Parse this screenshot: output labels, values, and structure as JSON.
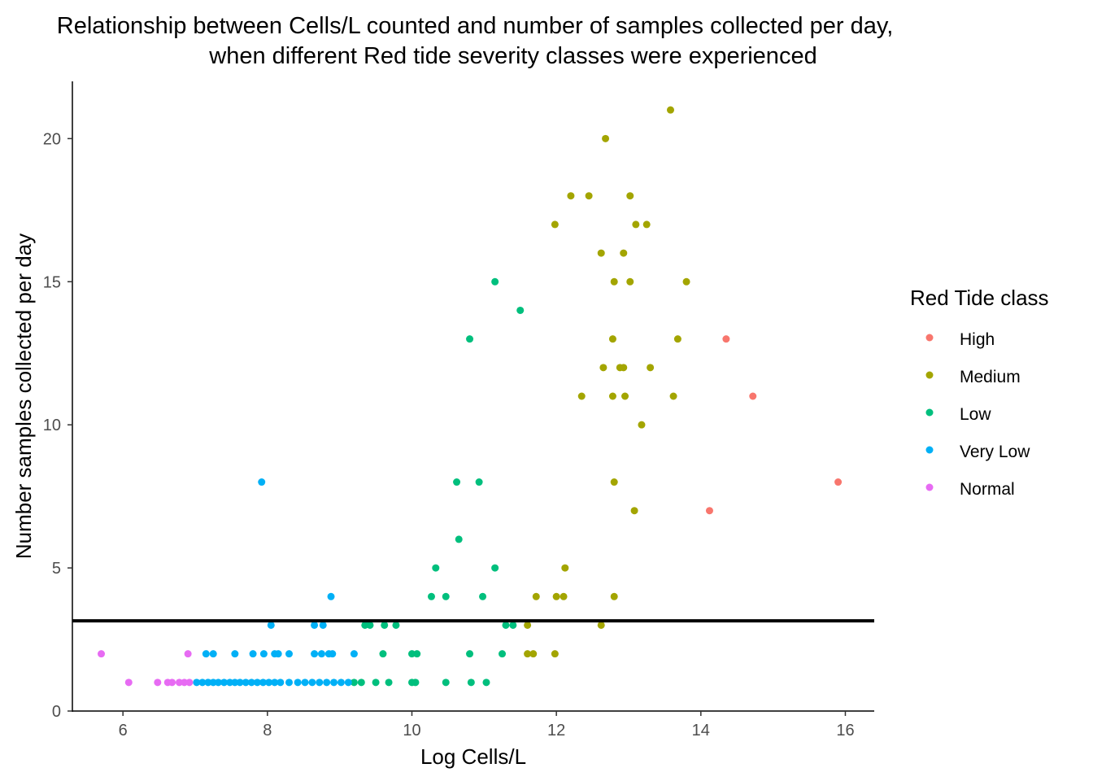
{
  "chart_data": {
    "type": "scatter",
    "title": "Relationship between Cells/L counted and number of samples collected per day,",
    "subtitle": "when different Red tide severity classes were experienced",
    "xlabel": "Log Cells/L",
    "ylabel": "Number samples collected per day",
    "xlim": [
      5.3,
      16.4
    ],
    "ylim": [
      0,
      22
    ],
    "x_ticks": [
      6,
      8,
      10,
      12,
      14,
      16
    ],
    "y_ticks": [
      0,
      5,
      10,
      15,
      20
    ],
    "grid": false,
    "legend": {
      "title": "Red Tide class",
      "position": "right"
    },
    "hline": {
      "y": 3.15,
      "color": "#000000"
    },
    "series": [
      {
        "name": "High",
        "color": "#F8766D",
        "points": [
          [
            14.35,
            13
          ],
          [
            14.72,
            11
          ],
          [
            14.12,
            7
          ],
          [
            15.9,
            8
          ]
        ]
      },
      {
        "name": "Medium",
        "color": "#A3A500",
        "points": [
          [
            13.58,
            21
          ],
          [
            12.68,
            20
          ],
          [
            12.2,
            18
          ],
          [
            12.45,
            18
          ],
          [
            13.02,
            18
          ],
          [
            11.98,
            17
          ],
          [
            13.1,
            17
          ],
          [
            13.25,
            17
          ],
          [
            12.62,
            16
          ],
          [
            12.93,
            16
          ],
          [
            12.8,
            15
          ],
          [
            13.02,
            15
          ],
          [
            13.8,
            15
          ],
          [
            12.78,
            13
          ],
          [
            13.68,
            13
          ],
          [
            12.65,
            12
          ],
          [
            12.88,
            12
          ],
          [
            12.93,
            12
          ],
          [
            13.3,
            12
          ],
          [
            12.35,
            11
          ],
          [
            12.78,
            11
          ],
          [
            12.95,
            11
          ],
          [
            13.62,
            11
          ],
          [
            13.18,
            10
          ],
          [
            12.8,
            8
          ],
          [
            13.08,
            7
          ],
          [
            12.12,
            5
          ],
          [
            11.72,
            4
          ],
          [
            12.0,
            4
          ],
          [
            12.1,
            4
          ],
          [
            12.8,
            4
          ],
          [
            11.6,
            3
          ],
          [
            12.62,
            3
          ],
          [
            11.6,
            2
          ],
          [
            11.68,
            2
          ],
          [
            11.98,
            2
          ]
        ]
      },
      {
        "name": "Low",
        "color": "#00BF7D",
        "points": [
          [
            11.15,
            15
          ],
          [
            11.5,
            14
          ],
          [
            10.8,
            13
          ],
          [
            10.62,
            8
          ],
          [
            10.93,
            8
          ],
          [
            10.65,
            6
          ],
          [
            10.33,
            5
          ],
          [
            11.15,
            5
          ],
          [
            10.27,
            4
          ],
          [
            10.47,
            4
          ],
          [
            10.98,
            4
          ],
          [
            9.35,
            3
          ],
          [
            9.42,
            3
          ],
          [
            9.62,
            3
          ],
          [
            9.78,
            3
          ],
          [
            11.3,
            3
          ],
          [
            11.4,
            3
          ],
          [
            9.6,
            2
          ],
          [
            10.0,
            2
          ],
          [
            10.07,
            2
          ],
          [
            10.8,
            2
          ],
          [
            11.25,
            2
          ],
          [
            9.2,
            1
          ],
          [
            9.3,
            1
          ],
          [
            9.5,
            1
          ],
          [
            9.68,
            1
          ],
          [
            10.0,
            1
          ],
          [
            10.05,
            1
          ],
          [
            10.47,
            1
          ],
          [
            10.82,
            1
          ],
          [
            11.03,
            1
          ]
        ]
      },
      {
        "name": "Very Low",
        "color": "#00B0F6",
        "points": [
          [
            7.92,
            8
          ],
          [
            8.88,
            4
          ],
          [
            8.05,
            3
          ],
          [
            8.65,
            3
          ],
          [
            8.77,
            3
          ],
          [
            7.15,
            2
          ],
          [
            7.25,
            2
          ],
          [
            7.55,
            2
          ],
          [
            7.8,
            2
          ],
          [
            7.95,
            2
          ],
          [
            8.1,
            2
          ],
          [
            8.15,
            2
          ],
          [
            8.3,
            2
          ],
          [
            8.65,
            2
          ],
          [
            8.75,
            2
          ],
          [
            8.85,
            2
          ],
          [
            8.9,
            2
          ],
          [
            9.2,
            2
          ],
          [
            7.02,
            1
          ],
          [
            7.1,
            1
          ],
          [
            7.18,
            1
          ],
          [
            7.25,
            1
          ],
          [
            7.32,
            1
          ],
          [
            7.4,
            1
          ],
          [
            7.48,
            1
          ],
          [
            7.55,
            1
          ],
          [
            7.62,
            1
          ],
          [
            7.7,
            1
          ],
          [
            7.78,
            1
          ],
          [
            7.86,
            1
          ],
          [
            7.94,
            1
          ],
          [
            8.02,
            1
          ],
          [
            8.1,
            1
          ],
          [
            8.18,
            1
          ],
          [
            8.3,
            1
          ],
          [
            8.42,
            1
          ],
          [
            8.52,
            1
          ],
          [
            8.62,
            1
          ],
          [
            8.72,
            1
          ],
          [
            8.82,
            1
          ],
          [
            8.92,
            1
          ],
          [
            9.02,
            1
          ],
          [
            9.12,
            1
          ]
        ]
      },
      {
        "name": "Normal",
        "color": "#E76BF3",
        "points": [
          [
            5.7,
            2
          ],
          [
            6.9,
            2
          ],
          [
            6.08,
            1
          ],
          [
            6.48,
            1
          ],
          [
            6.62,
            1
          ],
          [
            6.68,
            1
          ],
          [
            6.78,
            1
          ],
          [
            6.85,
            1
          ],
          [
            6.92,
            1
          ]
        ]
      }
    ]
  }
}
